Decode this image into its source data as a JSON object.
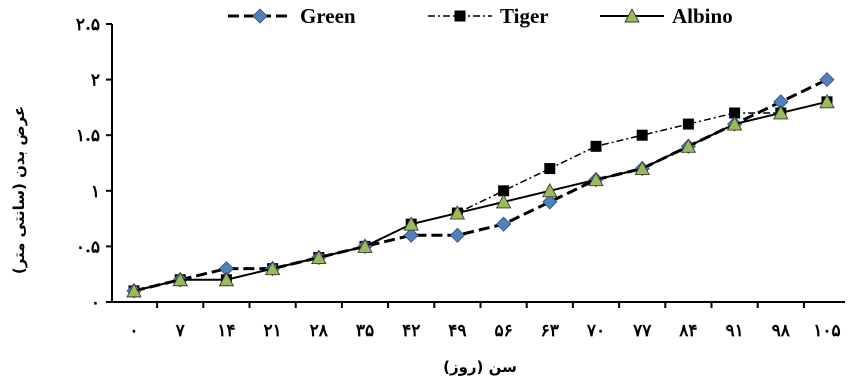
{
  "chart_data": {
    "type": "line",
    "xlabel": "سن (روز)",
    "ylabel": "عرض بدن (سانتی متر)",
    "x_tick_labels": [
      "۰",
      "۷",
      "۱۴",
      "۲۱",
      "۲۸",
      "۳۵",
      "۴۲",
      "۴۹",
      "۵۶",
      "۶۳",
      "۷۰",
      "۷۷",
      "۸۴",
      "۹۱",
      "۹۸",
      "۱۰۵"
    ],
    "y_tick_labels": [
      "۰",
      "۰.۵",
      "۱",
      "۱.۵",
      "۲",
      "۲.۵"
    ],
    "x": [
      0,
      7,
      14,
      21,
      28,
      35,
      42,
      49,
      56,
      63,
      70,
      77,
      84,
      91,
      98,
      105
    ],
    "xlim": [
      0,
      105
    ],
    "ylim": [
      0,
      2.5
    ],
    "y_ticks": [
      0,
      0.5,
      1,
      1.5,
      2,
      2.5
    ],
    "legend_position": "top",
    "series": [
      {
        "name": "Green",
        "color": "#4f81bd",
        "marker": "diamond",
        "line": "long-dash",
        "values": [
          0.1,
          0.2,
          0.3,
          0.3,
          0.4,
          0.5,
          0.6,
          0.6,
          0.7,
          0.9,
          1.1,
          1.2,
          1.4,
          1.6,
          1.8,
          2.0
        ]
      },
      {
        "name": "Tiger",
        "color": "#000000",
        "marker": "square",
        "line": "dash-dot",
        "values": [
          0.1,
          0.2,
          0.2,
          0.3,
          0.4,
          0.5,
          0.7,
          0.8,
          1.0,
          1.2,
          1.4,
          1.5,
          1.6,
          1.7,
          1.7,
          1.8
        ]
      },
      {
        "name": "Albino",
        "color": "#9bbb59",
        "marker": "triangle",
        "line": "solid",
        "values": [
          0.1,
          0.2,
          0.2,
          0.3,
          0.4,
          0.5,
          0.7,
          0.8,
          0.9,
          1.0,
          1.1,
          1.2,
          1.4,
          1.6,
          1.7,
          1.8
        ]
      }
    ]
  }
}
